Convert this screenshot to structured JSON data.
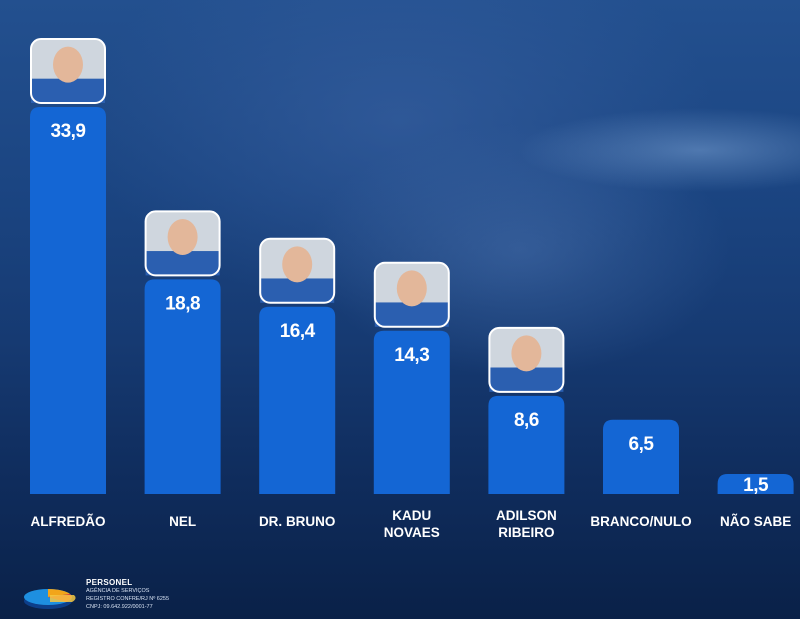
{
  "chart_data": {
    "type": "bar",
    "categories": [
      "ALFREDÃO",
      "NEL",
      "DR. BRUNO",
      "KADU NOVAES",
      "ADILSON RIBEIRO",
      "BRANCO/NULO",
      "NÃO SABE"
    ],
    "category_lines": [
      [
        "ALFREDÃO"
      ],
      [
        "NEL"
      ],
      [
        "DR. BRUNO"
      ],
      [
        "KADU",
        "NOVAES"
      ],
      [
        "ADILSON",
        "RIBEIRO"
      ],
      [
        "BRANCO/NULO"
      ],
      [
        "NÃO SABE"
      ]
    ],
    "values": [
      33.9,
      18.8,
      16.4,
      14.3,
      8.6,
      6.5,
      1.5
    ],
    "value_labels": [
      "33,9",
      "18,8",
      "16,4",
      "14,3",
      "8,6",
      "6,5",
      "1,5"
    ],
    "has_photo": [
      true,
      true,
      true,
      true,
      true,
      false,
      false
    ],
    "ylim": [
      0,
      33.9
    ],
    "grid": false,
    "bar_color": "#1466d4"
  },
  "footer": {
    "company": "PERSONEL",
    "subtitle": "AGÊNCIA DE SERVIÇOS",
    "registry": "REGISTRO CONFRE/RJ Nº 6255",
    "cnpj": "CNPJ: 09.642.922/0001-77"
  }
}
